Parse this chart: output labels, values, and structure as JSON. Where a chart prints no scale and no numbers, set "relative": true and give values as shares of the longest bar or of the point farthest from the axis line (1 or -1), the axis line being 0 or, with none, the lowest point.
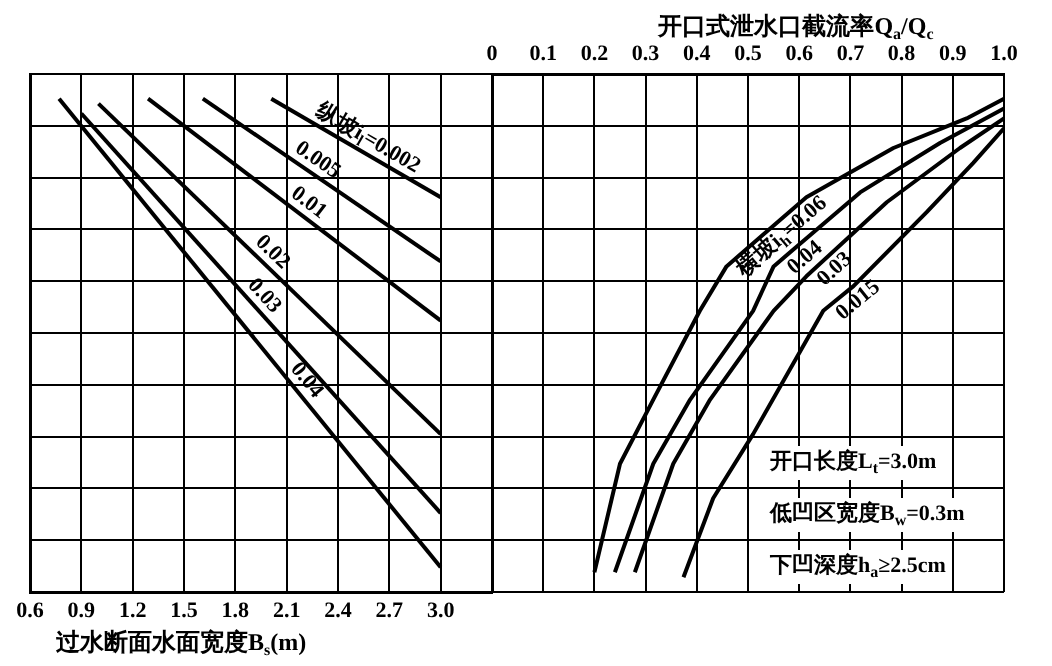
{
  "chart_data": [
    {
      "type": "line",
      "xlabel": "过水断面水面宽度B$_{s}$(m)",
      "xlim": [
        0.6,
        3.3
      ],
      "xticks": [
        0.6,
        0.9,
        1.2,
        1.5,
        1.8,
        2.1,
        2.4,
        2.7,
        {
          "value": 3,
          "label": "3.0"
        }
      ],
      "relative": true,
      "grid": true,
      "marker": "none",
      "line_style": "solid",
      "series": [
        {
          "name": "纵坡i$_{l}$=0.002",
          "color": "#000000",
          "x": [
            2.01,
            3.0
          ],
          "values": [
            1.0,
            0.8
          ]
        },
        {
          "name": "0.005",
          "color": "#000000",
          "x": [
            1.61,
            3.0
          ],
          "values": [
            1.0,
            0.67
          ]
        },
        {
          "name": "0.01",
          "color": "#000000",
          "x": [
            1.29,
            3.0
          ],
          "values": [
            1.0,
            0.55
          ]
        },
        {
          "name": "0.02",
          "color": "#000000",
          "x": [
            1.0,
            3.0
          ],
          "values": [
            0.99,
            0.32
          ]
        },
        {
          "name": "0.03",
          "color": "#000000",
          "x": [
            0.9,
            3.0
          ],
          "values": [
            0.97,
            0.16
          ]
        },
        {
          "name": "0.04",
          "color": "#000000",
          "x": [
            0.77,
            3.0
          ],
          "values": [
            1.0,
            0.05
          ]
        }
      ]
    },
    {
      "type": "line",
      "xlabel": "开口式泄水口截流率Q$_{a}$/Q$_{c}$",
      "xlim": [
        0,
        1
      ],
      "xticks": [
        0,
        0.1,
        0.2,
        0.3,
        0.4,
        0.5,
        0.6,
        0.7,
        0.8,
        0.9,
        {
          "value": 1,
          "label": "1.0"
        }
      ],
      "relative": true,
      "grid": true,
      "marker": "none",
      "line_style": "solid",
      "annotations": [
        "开口长度L$_{t}$=3.0m",
        "低凹区宽度B$_{w}$=0.3m",
        "下凹深度h$_{a}$≥2.5cm"
      ],
      "series": [
        {
          "name": "横坡i$_{h}$=0.06",
          "color": "#000000",
          "x": [
            0.2,
            0.25,
            0.315,
            0.406,
            0.458,
            0.614,
            0.784,
            0.927,
            1.0
          ],
          "values": [
            0.04,
            0.26,
            0.39,
            0.57,
            0.66,
            0.8,
            0.9,
            0.96,
            1.0
          ]
        },
        {
          "name": "0.04",
          "color": "#000000",
          "x": [
            0.24,
            0.315,
            0.387,
            0.51,
            0.55,
            0.719,
            0.875,
            1.0
          ],
          "values": [
            0.04,
            0.26,
            0.39,
            0.57,
            0.66,
            0.81,
            0.91,
            0.98
          ]
        },
        {
          "name": "0.03",
          "color": "#000000",
          "x": [
            0.279,
            0.354,
            0.426,
            0.55,
            0.614,
            0.771,
            0.914,
            1.0
          ],
          "values": [
            0.04,
            0.26,
            0.39,
            0.57,
            0.64,
            0.79,
            0.9,
            0.96
          ]
        },
        {
          "name": "0.015",
          "color": "#000000",
          "x": [
            0.374,
            0.432,
            0.51,
            0.647,
            0.706,
            0.849,
            0.94,
            1.0
          ],
          "values": [
            0.03,
            0.19,
            0.32,
            0.57,
            0.62,
            0.77,
            0.87,
            0.94
          ]
        }
      ]
    }
  ]
}
